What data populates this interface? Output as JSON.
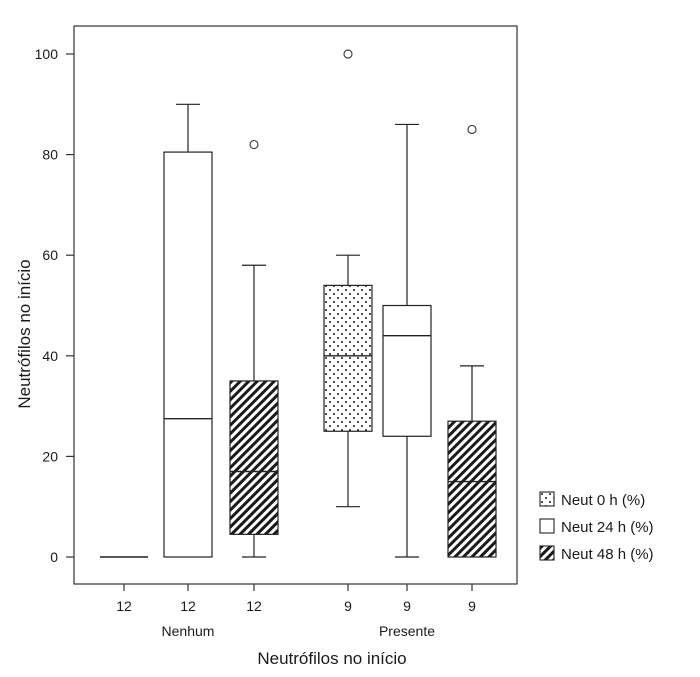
{
  "chart_data": {
    "type": "boxplot",
    "title": "",
    "xlabel": "Neutrófilos no início",
    "ylabel": "Neutrófilos no início",
    "ylim": [
      0,
      105
    ],
    "yticks": [
      0,
      20,
      40,
      60,
      80,
      100
    ],
    "grid": false,
    "legend_position": "right",
    "groups": [
      "Nenhum",
      "Presente"
    ],
    "series": [
      {
        "name": "Neut 0 h (%)",
        "fill": "dots"
      },
      {
        "name": "Neut 24 h (%)",
        "fill": "white"
      },
      {
        "name": "Neut 48 h (%)",
        "fill": "hatch"
      }
    ],
    "boxes": [
      {
        "group": "Nenhum",
        "series": 0,
        "n": "12",
        "min": 0,
        "q1": 0,
        "median": 0,
        "q3": 0,
        "max": 0,
        "outliers": []
      },
      {
        "group": "Nenhum",
        "series": 1,
        "n": "12",
        "min": 0,
        "q1": 0,
        "median": 27.5,
        "q3": 80.5,
        "max": 90,
        "outliers": []
      },
      {
        "group": "Nenhum",
        "series": 2,
        "n": "12",
        "min": 0,
        "q1": 4.5,
        "median": 17,
        "q3": 35,
        "max": 58,
        "outliers": [
          82
        ]
      },
      {
        "group": "Presente",
        "series": 0,
        "n": "9",
        "min": 10,
        "q1": 25,
        "median": 40,
        "q3": 54,
        "max": 60,
        "outliers": [
          100
        ]
      },
      {
        "group": "Presente",
        "series": 1,
        "n": "9",
        "min": 0,
        "q1": 24,
        "median": 44,
        "q3": 50,
        "max": 86,
        "outliers": []
      },
      {
        "group": "Presente",
        "series": 2,
        "n": "9",
        "min": 0,
        "q1": 0,
        "median": 15,
        "q3": 27,
        "max": 38,
        "outliers": [
          85
        ]
      }
    ]
  }
}
